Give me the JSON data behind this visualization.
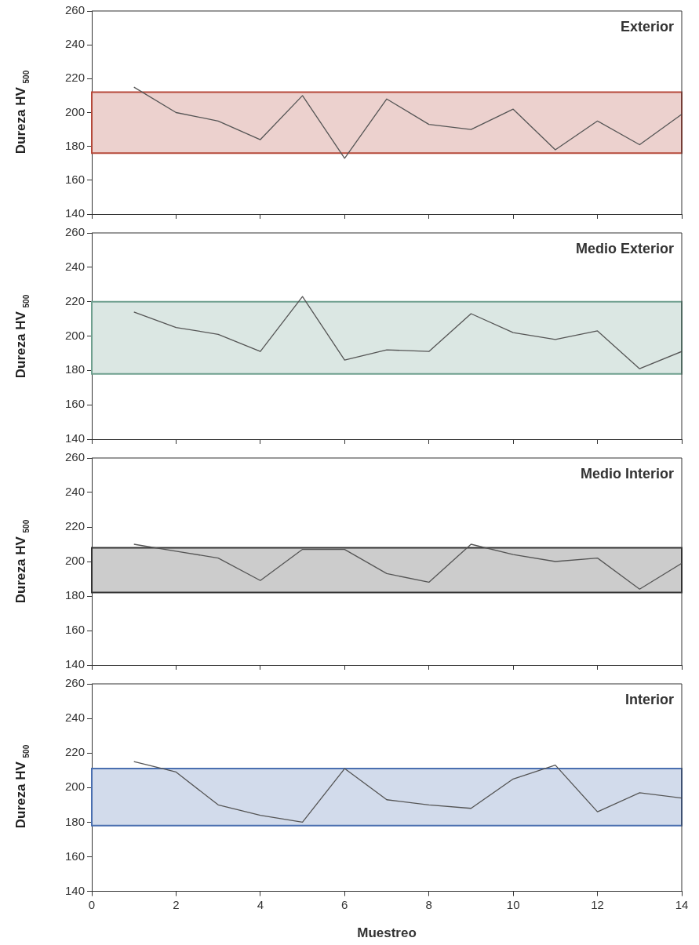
{
  "chart_data": [
    {
      "type": "line",
      "title": "Exterior",
      "ylabel": "Dureza HV $_{500}$",
      "x": [
        1,
        2,
        3,
        4,
        5,
        6,
        7,
        8,
        9,
        10,
        11,
        12,
        13,
        14
      ],
      "series": [
        {
          "color": "#555555",
          "values": [
            215,
            200,
            195,
            184,
            210,
            173,
            208,
            193,
            190,
            202,
            178,
            195,
            181,
            199
          ]
        }
      ],
      "bands": [
        {
          "axis": "y",
          "from": 176,
          "to": 212,
          "color": "#b5493a"
        }
      ],
      "xlim": [
        0,
        14
      ],
      "xticks": [
        0,
        2,
        4,
        6,
        8,
        10,
        12,
        14
      ],
      "ylim": [
        140,
        260
      ],
      "yticks": [
        140,
        160,
        180,
        200,
        220,
        240,
        260
      ],
      "tick_labels": "y",
      "grid": false,
      "legend": false,
      "marker": "none",
      "line_style": "solid"
    },
    {
      "type": "line",
      "title": "Medio Exterior",
      "ylabel": "Dureza HV $_{500}$",
      "x": [
        1,
        2,
        3,
        4,
        5,
        6,
        7,
        8,
        9,
        10,
        11,
        12,
        13,
        14
      ],
      "series": [
        {
          "color": "#555555",
          "values": [
            214,
            205,
            201,
            191,
            223,
            186,
            192,
            191,
            213,
            202,
            198,
            203,
            181,
            191
          ]
        }
      ],
      "bands": [
        {
          "axis": "y",
          "from": 178,
          "to": 220,
          "color": "#6fa08f"
        }
      ],
      "xlim": [
        0,
        14
      ],
      "xticks": [
        0,
        2,
        4,
        6,
        8,
        10,
        12,
        14
      ],
      "ylim": [
        140,
        260
      ],
      "yticks": [
        140,
        160,
        180,
        200,
        220,
        240,
        260
      ],
      "tick_labels": "y",
      "grid": false,
      "legend": false,
      "marker": "none",
      "line_style": "solid"
    },
    {
      "type": "line",
      "title": "Medio Interior",
      "ylabel": "Dureza HV $_{500}$",
      "x": [
        1,
        2,
        3,
        4,
        5,
        6,
        7,
        8,
        9,
        10,
        11,
        12,
        13,
        14
      ],
      "series": [
        {
          "color": "#555555",
          "values": [
            210,
            206,
            202,
            189,
            207,
            207,
            193,
            188,
            210,
            204,
            200,
            202,
            184,
            199
          ]
        }
      ],
      "bands": [
        {
          "axis": "y",
          "from": 182,
          "to": 208,
          "color": "#333333"
        }
      ],
      "xlim": [
        0,
        14
      ],
      "xticks": [
        0,
        2,
        4,
        6,
        8,
        10,
        12,
        14
      ],
      "ylim": [
        140,
        260
      ],
      "yticks": [
        140,
        160,
        180,
        200,
        220,
        240,
        260
      ],
      "tick_labels": "y",
      "grid": false,
      "legend": false,
      "marker": "none",
      "line_style": "solid"
    },
    {
      "type": "line",
      "title": "Interior",
      "ylabel": "Dureza HV $_{500}$",
      "xlabel": "Muestreo",
      "x": [
        1,
        2,
        3,
        4,
        5,
        6,
        7,
        8,
        9,
        10,
        11,
        12,
        13,
        14
      ],
      "series": [
        {
          "color": "#555555",
          "values": [
            215,
            209,
            190,
            184,
            180,
            211,
            193,
            190,
            188,
            205,
            213,
            186,
            197,
            194
          ]
        }
      ],
      "bands": [
        {
          "axis": "y",
          "from": 178,
          "to": 211,
          "color": "#4a6fb0"
        }
      ],
      "xlim": [
        0,
        14
      ],
      "xticks": [
        0,
        2,
        4,
        6,
        8,
        10,
        12,
        14
      ],
      "ylim": [
        140,
        260
      ],
      "yticks": [
        140,
        160,
        180,
        200,
        220,
        240,
        260
      ],
      "grid": false,
      "legend": false,
      "marker": "none",
      "line_style": "solid"
    }
  ]
}
